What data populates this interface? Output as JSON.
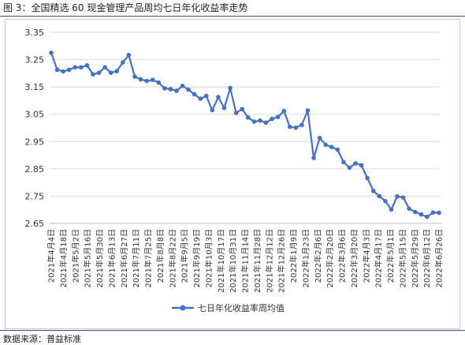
{
  "title": "图 3：全国精选 60 现金管理产品周均七日年化收益率走势",
  "source": "数据来源：普益标准",
  "chart_data": {
    "type": "line",
    "title": "图 3：全国精选 60 现金管理产品周均七日年化收益率走势",
    "xlabel": "",
    "ylabel": "",
    "ylim": [
      2.65,
      3.35
    ],
    "yticks": [
      "3.35",
      "3.25",
      "3.15",
      "3.05",
      "2.95",
      "2.85",
      "2.75",
      "2.65"
    ],
    "yticks_values": [
      3.35,
      3.25,
      3.15,
      3.05,
      2.95,
      2.85,
      2.75,
      2.65
    ],
    "grid": true,
    "legend": "bottom-center",
    "colors": {
      "line": "#4472c4",
      "marker": "#4472c4",
      "grid": "#d9d9d9",
      "axis": "#bfbfbf"
    },
    "x_tick_labels": [
      "2021年4月4日",
      "2021年4月18日",
      "2021年5月2日",
      "2021年5月16日",
      "2021年5月30日",
      "2021年6月13日",
      "2021年6月27日",
      "2021年7月11日",
      "2021年7月25日",
      "2021年8月8日",
      "2021年8月22日",
      "2021年9月5日",
      "2021年9月19日",
      "2021年10月3日",
      "2021年10月17日",
      "2021年10月31日",
      "2021年11月14日",
      "2021年11月28日",
      "2021年12月12日",
      "2021年12月26日",
      "2022年1月9日",
      "2022年1月23日",
      "2022年2月6日",
      "2022年2月20日",
      "2022年3月6日",
      "2022年3月20日",
      "2022年4月3日",
      "2022年4月17日",
      "2022年5月1日",
      "2022年5月15日",
      "2022年5月29日",
      "2022年6月12日",
      "2022年6月26日"
    ],
    "series": [
      {
        "name": "七日年化收益率周均值",
        "values": [
          3.275,
          3.213,
          3.207,
          3.213,
          3.222,
          3.222,
          3.229,
          3.196,
          3.202,
          3.222,
          3.202,
          3.208,
          3.24,
          3.267,
          3.188,
          3.178,
          3.172,
          3.176,
          3.166,
          3.145,
          3.142,
          3.136,
          3.154,
          3.14,
          3.123,
          3.107,
          3.117,
          3.065,
          3.113,
          3.073,
          3.146,
          3.055,
          3.069,
          3.038,
          3.023,
          3.027,
          3.019,
          3.033,
          3.04,
          3.062,
          3.004,
          3.001,
          3.011,
          3.064,
          2.89,
          2.963,
          2.938,
          2.93,
          2.92,
          2.875,
          2.854,
          2.87,
          2.863,
          2.816,
          2.769,
          2.75,
          2.732,
          2.701,
          2.749,
          2.745,
          2.704,
          2.692,
          2.683,
          2.674,
          2.69,
          2.689
        ]
      }
    ]
  }
}
